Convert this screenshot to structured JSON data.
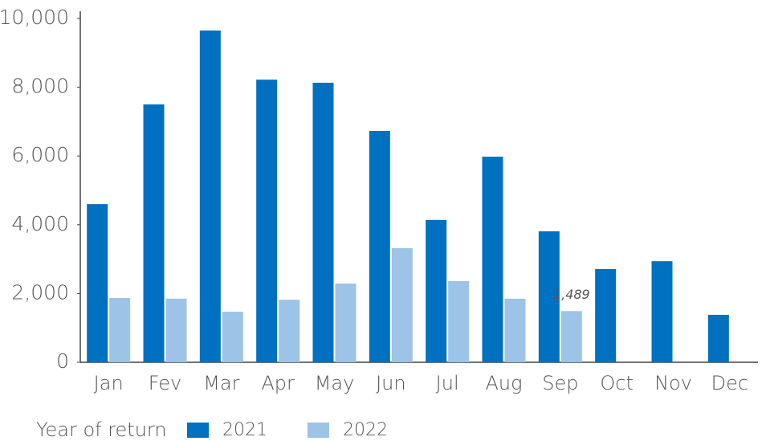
{
  "chart_data": {
    "type": "bar",
    "categories": [
      "Jan",
      "Fev",
      "Mar",
      "Apr",
      "May",
      "Jun",
      "Jul",
      "Aug",
      "Sep",
      "Oct",
      "Nov",
      "Dec"
    ],
    "legend_title": "Year of return",
    "series": [
      {
        "name": "2021",
        "color": "#0070c0",
        "values": [
          4600,
          7500,
          9650,
          8220,
          8130,
          6730,
          4140,
          5980,
          3810,
          2710,
          2940,
          1380
        ]
      },
      {
        "name": "2022",
        "color": "#9dc3e6",
        "values": [
          1870,
          1850,
          1470,
          1820,
          2290,
          3320,
          2360,
          1850,
          1489,
          null,
          null,
          null
        ],
        "value_labels": [
          null,
          null,
          null,
          null,
          null,
          null,
          null,
          null,
          "1,489",
          null,
          null,
          null
        ]
      }
    ],
    "ylim": [
      0,
      10000
    ],
    "yticks": [
      0,
      {
        "value": 2000,
        "label": "2,000"
      },
      {
        "value": 4000,
        "label": "4,000"
      },
      {
        "value": 6000,
        "label": "6,000"
      },
      {
        "value": 8000,
        "label": "8,000"
      },
      {
        "value": 10000,
        "label": "10,000"
      }
    ],
    "legend": "bottom-left"
  }
}
